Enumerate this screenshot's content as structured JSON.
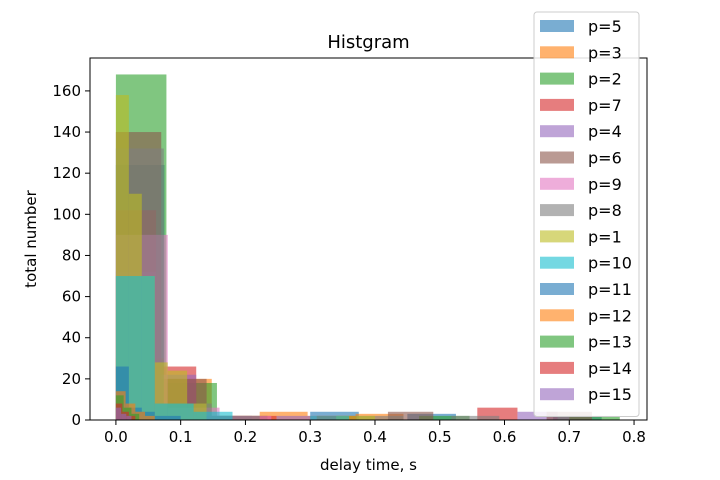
{
  "chart_data": {
    "type": "bar",
    "title": "Histgram",
    "xlabel": "delay time, s",
    "ylabel": "total number",
    "xlim": [
      -0.04,
      0.82
    ],
    "ylim": [
      0,
      176
    ],
    "xticks": [
      "0.0",
      "0.1",
      "0.2",
      "0.3",
      "0.4",
      "0.5",
      "0.6",
      "0.7",
      "0.8"
    ],
    "yticks": [
      "0",
      "20",
      "40",
      "60",
      "80",
      "100",
      "120",
      "140",
      "160"
    ],
    "legend_position": "top-right",
    "bar_opacity": 0.6,
    "series": [
      {
        "name": "p=5",
        "color": "#1f77b4",
        "bins": [
          [
            0.0,
            0.075,
            124
          ],
          [
            0.075,
            0.15,
            2
          ],
          [
            0.3,
            0.375,
            4
          ],
          [
            0.45,
            0.525,
            3
          ],
          [
            0.675,
            0.75,
            2
          ]
        ]
      },
      {
        "name": "p=3",
        "color": "#ff7f0e",
        "bins": [
          [
            0.0,
            0.074,
            30
          ],
          [
            0.074,
            0.148,
            20
          ],
          [
            0.148,
            0.222,
            2
          ],
          [
            0.222,
            0.296,
            4
          ],
          [
            0.296,
            0.37,
            2
          ],
          [
            0.37,
            0.444,
            3
          ]
        ]
      },
      {
        "name": "p=2",
        "color": "#2ca02c",
        "bins": [
          [
            0.0,
            0.078,
            168
          ],
          [
            0.078,
            0.156,
            18
          ],
          [
            0.156,
            0.234,
            2
          ],
          [
            0.468,
            0.546,
            2
          ],
          [
            0.7,
            0.778,
            2
          ]
        ]
      },
      {
        "name": "p=7",
        "color": "#d62728",
        "bins": [
          [
            0.0,
            0.062,
            102
          ],
          [
            0.062,
            0.124,
            26
          ],
          [
            0.124,
            0.186,
            2
          ],
          [
            0.186,
            0.248,
            2
          ],
          [
            0.31,
            0.372,
            2
          ],
          [
            0.558,
            0.62,
            6
          ]
        ]
      },
      {
        "name": "p=4",
        "color": "#9467bd",
        "bins": [
          [
            0.0,
            0.062,
            72
          ],
          [
            0.062,
            0.124,
            22
          ],
          [
            0.248,
            0.31,
            2
          ],
          [
            0.62,
            0.682,
            4
          ]
        ]
      },
      {
        "name": "p=6",
        "color": "#8c564b",
        "bins": [
          [
            0.0,
            0.07,
            140
          ],
          [
            0.07,
            0.14,
            20
          ],
          [
            0.14,
            0.21,
            2
          ],
          [
            0.42,
            0.49,
            4
          ],
          [
            0.665,
            0.735,
            4
          ]
        ]
      },
      {
        "name": "p=9",
        "color": "#e377c2",
        "bins": [
          [
            0.0,
            0.08,
            90
          ],
          [
            0.08,
            0.16,
            6
          ],
          [
            0.16,
            0.24,
            2
          ]
        ]
      },
      {
        "name": "p=8",
        "color": "#7f7f7f",
        "bins": [
          [
            0.0,
            0.074,
            132
          ],
          [
            0.074,
            0.148,
            8
          ],
          [
            0.148,
            0.222,
            2
          ],
          [
            0.37,
            0.444,
            2
          ],
          [
            0.518,
            0.592,
            2
          ]
        ]
      },
      {
        "name": "p=1",
        "color": "#bcbd22",
        "bins": [
          [
            0.0,
            0.02,
            158
          ],
          [
            0.02,
            0.04,
            110
          ],
          [
            0.04,
            0.06,
            70
          ],
          [
            0.06,
            0.08,
            28
          ],
          [
            0.08,
            0.11,
            24
          ],
          [
            0.11,
            0.14,
            8
          ],
          [
            0.34,
            0.37,
            2
          ],
          [
            0.37,
            0.4,
            2
          ]
        ]
      },
      {
        "name": "p=10",
        "color": "#17becf",
        "bins": [
          [
            0.0,
            0.06,
            70
          ],
          [
            0.06,
            0.12,
            8
          ],
          [
            0.12,
            0.18,
            4
          ],
          [
            0.3,
            0.36,
            2
          ]
        ]
      },
      {
        "name": "p=11",
        "color": "#1f77b4",
        "bins": [
          [
            0.0,
            0.02,
            26
          ],
          [
            0.02,
            0.04,
            6
          ],
          [
            0.04,
            0.06,
            4
          ],
          [
            0.06,
            0.08,
            2
          ],
          [
            0.08,
            0.1,
            2
          ]
        ]
      },
      {
        "name": "p=12",
        "color": "#ff7f0e",
        "bins": [
          [
            0.0,
            0.015,
            14
          ],
          [
            0.015,
            0.03,
            8
          ],
          [
            0.03,
            0.045,
            4
          ],
          [
            0.045,
            0.06,
            2
          ]
        ]
      },
      {
        "name": "p=13",
        "color": "#2ca02c",
        "bins": [
          [
            0.0,
            0.012,
            12
          ],
          [
            0.012,
            0.024,
            6
          ],
          [
            0.024,
            0.036,
            3
          ]
        ]
      },
      {
        "name": "p=14",
        "color": "#d62728",
        "bins": [
          [
            0.0,
            0.01,
            8
          ],
          [
            0.01,
            0.02,
            4
          ],
          [
            0.02,
            0.03,
            2
          ]
        ]
      },
      {
        "name": "p=15",
        "color": "#9467bd",
        "bins": [
          [
            0.0,
            0.008,
            6
          ],
          [
            0.008,
            0.016,
            3
          ],
          [
            0.016,
            0.024,
            2
          ]
        ]
      }
    ]
  }
}
